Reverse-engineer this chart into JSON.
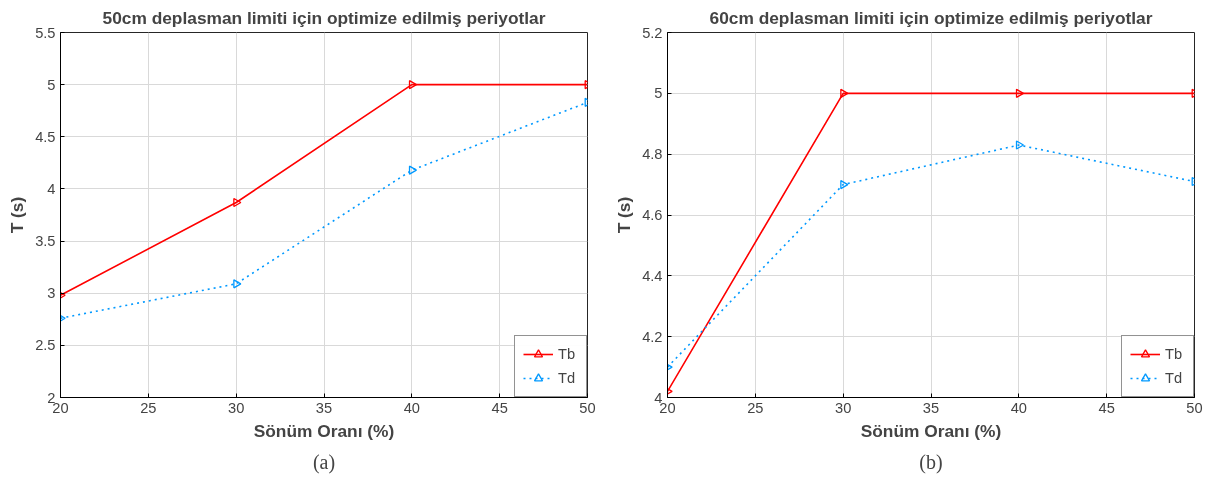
{
  "chart_data": [
    {
      "type": "line",
      "title": "50cm deplasman limiti için optimize edilmiş periyotlar",
      "xlabel": "Sönüm Oranı (%)",
      "ylabel": "T (s)",
      "x": [
        20,
        30,
        40,
        50
      ],
      "series": [
        {
          "name": "Tb",
          "color": "#ff0000",
          "line_style": "solid",
          "values": [
            2.98,
            3.87,
            5,
            5
          ]
        },
        {
          "name": "Td",
          "color": "#0099ff",
          "line_style": "dotted",
          "values": [
            2.76,
            3.09,
            4.18,
            4.83
          ]
        }
      ],
      "xlim": [
        20,
        50
      ],
      "xticks": [
        20,
        25,
        30,
        35,
        40,
        45,
        50
      ],
      "ylim": [
        2,
        5.5
      ],
      "yticks": [
        2,
        2.5,
        3,
        3.5,
        4,
        4.5,
        5,
        5.5
      ],
      "grid": true,
      "legend": "bottom right",
      "marker": "triangle",
      "annotations": [
        "(a)"
      ]
    },
    {
      "type": "line",
      "title": "60cm deplasman limiti için optimize edilmiş periyotlar",
      "xlabel": "Sönüm Oranı (%)",
      "ylabel": "T (s)",
      "x": [
        20,
        30,
        40,
        50
      ],
      "series": [
        {
          "name": "Tb",
          "color": "#ff0000",
          "line_style": "solid",
          "values": [
            4.02,
            5,
            5,
            5
          ]
        },
        {
          "name": "Td",
          "color": "#0099ff",
          "line_style": "dotted",
          "values": [
            4.1,
            4.7,
            4.83,
            4.71
          ]
        }
      ],
      "xlim": [
        20,
        50
      ],
      "xticks": [
        20,
        25,
        30,
        35,
        40,
        45,
        50
      ],
      "ylim": [
        4,
        5.2
      ],
      "yticks": [
        4,
        4.2,
        4.4,
        4.6,
        4.8,
        5,
        5.2
      ],
      "grid": true,
      "legend": "bottom right",
      "marker": "triangle",
      "annotations": [
        "(b)"
      ]
    }
  ]
}
